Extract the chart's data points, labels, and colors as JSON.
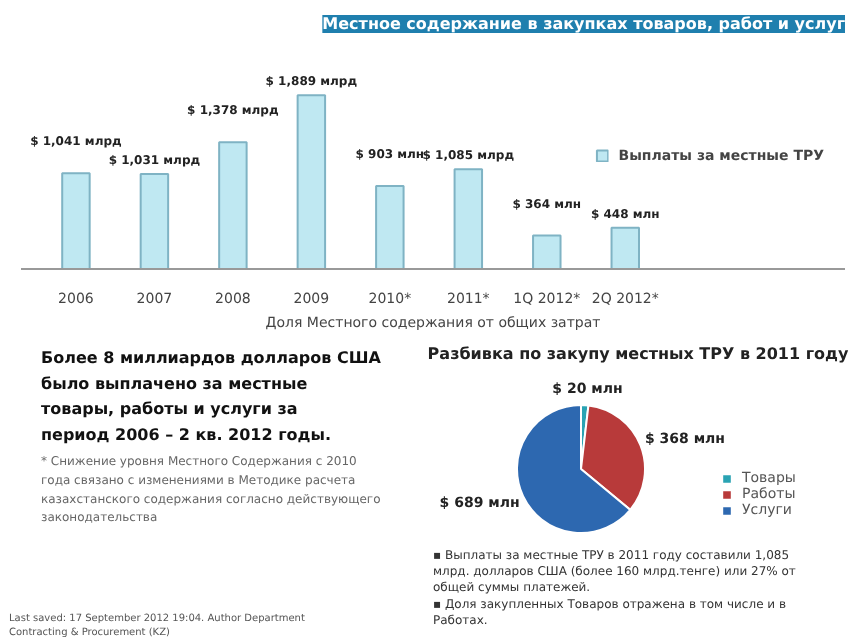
{
  "chart_data": [
    {
      "type": "bar",
      "title": "Местное содержание в закупках товаров, работ и услуг",
      "xlabel": "Доля Местного содержания от общих затрат",
      "categories": [
        "2006",
        "2007",
        "2008",
        "2009",
        "2010*",
        "2011*",
        "1Q 2012*",
        "2Q 2012*"
      ],
      "tick_labels": "x",
      "series": [
        {
          "name": "Выплаты за местные ТРУ",
          "color": "#bfe8f2",
          "values": [
            1041,
            1031,
            1378,
            1889,
            903,
            1085,
            364,
            448
          ],
          "value_labels": [
            "$ 1,041 млрд",
            "$ 1,031 млрд",
            "$ 1,378 млрд",
            "$ 1,889 млрд",
            "$ 903 млн",
            "$ 1,085 млрд",
            "$ 364 млн",
            "$ 448 млн"
          ]
        }
      ],
      "legend": "right",
      "grid": false
    },
    {
      "type": "pie",
      "title": "Разбивка по закупу местных ТРУ в 2011 году",
      "categories": [
        "Товары",
        "Работы",
        "Услуги"
      ],
      "values": [
        20,
        368,
        689
      ],
      "colors": [
        "#2aa3b3",
        "#b83a3a",
        "#2d68b0"
      ],
      "value_labels": [
        "$ 20 млн",
        "$ 368 млн",
        "$ 689 млн"
      ],
      "legend": "right",
      "annotations": [
        "▪ Выплаты за местные ТРУ в 2011 году составили 1,085 млрд. долларов США (более 160 млрд.тенге) или 27% от общей суммы платежей.",
        "▪ Доля закупленных Товаров отражена в том числе и в Работах."
      ]
    },
    {
      "type": "other",
      "annotations": [
        "Более 8 миллиардов долларов США было выплачено за местные товары, работы и услуги за период 2006 – 2 кв. 2012 годы.",
        "* Снижение уровня Местного Содержания с 2010 года связано с изменениями в Методике расчета казахстанского содержания согласно действующего законодательства",
        "Last saved: 17 September 2012 19:04. Author Department Contracting & Procurement (KZ)"
      ]
    }
  ]
}
